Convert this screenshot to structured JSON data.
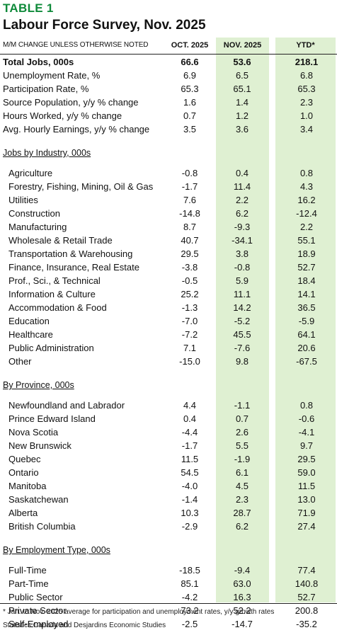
{
  "title": {
    "table_label": "TABLE 1",
    "heading": "Labour Force Survey, Nov. 2025"
  },
  "header": {
    "label": "M/M CHANGE UNLESS OTHERWISE NOTED",
    "col1": "OCT. 2025",
    "col2": "NOV. 2025",
    "col3": "YTD*"
  },
  "highlight_color": "#dff0d2",
  "accent_color": "#0f8a3a",
  "rows": [
    {
      "kind": "bold",
      "label": "Total Jobs, 000s",
      "v": [
        "66.6",
        "53.6",
        "218.1"
      ]
    },
    {
      "kind": "row",
      "label": "Unemployment Rate, %",
      "v": [
        "6.9",
        "6.5",
        "6.8"
      ]
    },
    {
      "kind": "row",
      "label": "Participation Rate, %",
      "v": [
        "65.3",
        "65.1",
        "65.3"
      ]
    },
    {
      "kind": "row",
      "label": "Source Population, y/y % change",
      "v": [
        "1.6",
        "1.4",
        "2.3"
      ]
    },
    {
      "kind": "row",
      "label": "Hours Worked, y/y % change",
      "v": [
        "0.7",
        "1.2",
        "1.0"
      ]
    },
    {
      "kind": "row",
      "label": "Avg. Hourly Earnings, y/y % change",
      "v": [
        "3.5",
        "3.6",
        "3.4"
      ]
    },
    {
      "kind": "secspace"
    },
    {
      "kind": "section",
      "label": "Jobs by Industry, 000s"
    },
    {
      "kind": "space"
    },
    {
      "kind": "sub",
      "label": "Agriculture",
      "v": [
        "-0.8",
        "0.4",
        "0.8"
      ]
    },
    {
      "kind": "sub",
      "label": "Forestry, Fishing, Mining, Oil & Gas",
      "v": [
        "-1.7",
        "11.4",
        "4.3"
      ]
    },
    {
      "kind": "sub",
      "label": "Utilities",
      "v": [
        "7.6",
        "2.2",
        "16.2"
      ]
    },
    {
      "kind": "sub",
      "label": "Construction",
      "v": [
        "-14.8",
        "6.2",
        "-12.4"
      ]
    },
    {
      "kind": "sub",
      "label": "Manufacturing",
      "v": [
        "8.7",
        "-9.3",
        "2.2"
      ]
    },
    {
      "kind": "sub",
      "label": "Wholesale & Retail Trade",
      "v": [
        "40.7",
        "-34.1",
        "55.1"
      ]
    },
    {
      "kind": "sub",
      "label": "Transportation & Warehousing",
      "v": [
        "29.5",
        "3.8",
        "18.9"
      ]
    },
    {
      "kind": "sub",
      "label": "Finance, Insurance, Real Estate",
      "v": [
        "-3.8",
        "-0.8",
        "52.7"
      ]
    },
    {
      "kind": "sub",
      "label": "Prof., Sci., & Technical",
      "v": [
        "-0.5",
        "5.9",
        "18.4"
      ]
    },
    {
      "kind": "sub",
      "label": "Information & Culture",
      "v": [
        "25.2",
        "11.1",
        "14.1"
      ]
    },
    {
      "kind": "sub",
      "label": "Accommodation & Food",
      "v": [
        "-1.3",
        "14.2",
        "36.5"
      ]
    },
    {
      "kind": "sub",
      "label": "Education",
      "v": [
        "-7.0",
        "-5.2",
        "-5.9"
      ]
    },
    {
      "kind": "sub",
      "label": "Healthcare",
      "v": [
        "-7.2",
        "45.5",
        "64.1"
      ]
    },
    {
      "kind": "sub",
      "label": "Public Administration",
      "v": [
        "7.1",
        "-7.6",
        "20.6"
      ]
    },
    {
      "kind": "sub",
      "label": "Other",
      "v": [
        "-15.0",
        "9.8",
        "-67.5"
      ]
    },
    {
      "kind": "secspace"
    },
    {
      "kind": "section",
      "label": "By Province, 000s"
    },
    {
      "kind": "space"
    },
    {
      "kind": "sub",
      "label": "Newfoundland and Labrador",
      "v": [
        "4.4",
        "-1.1",
        "0.8"
      ]
    },
    {
      "kind": "sub",
      "label": "Prince Edward Island",
      "v": [
        "0.4",
        "0.7",
        "-0.6"
      ]
    },
    {
      "kind": "sub",
      "label": "Nova Scotia",
      "v": [
        "-4.4",
        "2.6",
        "-4.1"
      ]
    },
    {
      "kind": "sub",
      "label": "New Brunswick",
      "v": [
        "-1.7",
        "5.5",
        "9.7"
      ]
    },
    {
      "kind": "sub",
      "label": "Quebec",
      "v": [
        "11.5",
        "-1.9",
        "29.5"
      ]
    },
    {
      "kind": "sub",
      "label": "Ontario",
      "v": [
        "54.5",
        "6.1",
        "59.0"
      ]
    },
    {
      "kind": "sub",
      "label": "Manitoba",
      "v": [
        "-4.0",
        "4.5",
        "11.5"
      ]
    },
    {
      "kind": "sub",
      "label": "Saskatchewan",
      "v": [
        "-1.4",
        "2.3",
        "13.0"
      ]
    },
    {
      "kind": "sub",
      "label": "Alberta",
      "v": [
        "10.3",
        "28.7",
        "71.9"
      ]
    },
    {
      "kind": "sub",
      "label": "British Columbia",
      "v": [
        "-2.9",
        "6.2",
        "27.4"
      ]
    },
    {
      "kind": "secspace"
    },
    {
      "kind": "section",
      "label": "By Employment Type, 000s"
    },
    {
      "kind": "space"
    },
    {
      "kind": "sub",
      "label": "Full-Time",
      "v": [
        "-18.5",
        "-9.4",
        "77.4"
      ]
    },
    {
      "kind": "sub",
      "label": "Part-Time",
      "v": [
        "85.1",
        "63.0",
        "140.8"
      ]
    },
    {
      "kind": "sub",
      "label": "Public Sector",
      "v": [
        "-4.2",
        "16.3",
        "52.7"
      ]
    },
    {
      "kind": "sub",
      "label": "Private Sector",
      "v": [
        "73.2",
        "52.2",
        "200.8"
      ]
    },
    {
      "kind": "sub",
      "label": "Self-Employed",
      "v": [
        "-2.5",
        "-14.7",
        "-35.2"
      ]
    }
  ],
  "notes": {
    "footnote": "* Jan. to Nov. 2025 average for participation and unemployment rates, y/y growth rates",
    "source": "Statistics Canada and Desjardins Economic Studies"
  }
}
